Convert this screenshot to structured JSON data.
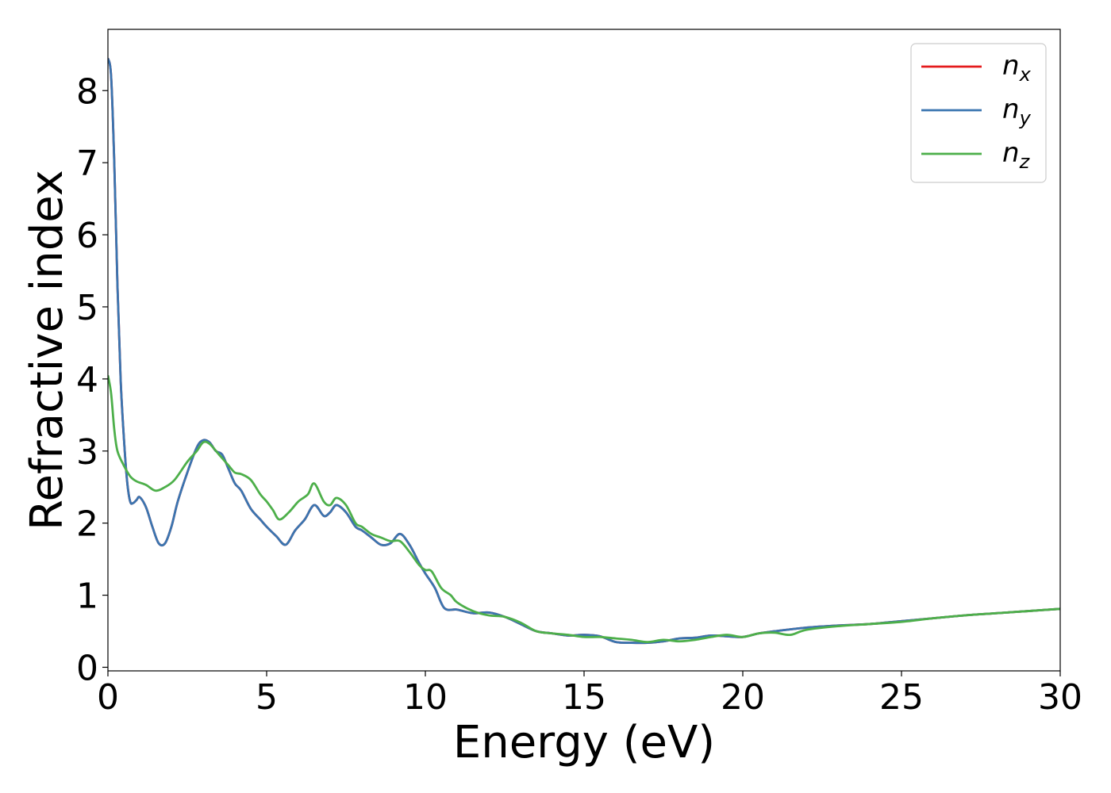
{
  "chart_data": {
    "type": "line",
    "xlabel": "Energy (eV)",
    "ylabel": "Refractive index",
    "xlim": [
      0,
      30
    ],
    "ylim": [
      -0.05,
      8.85
    ],
    "xticks": [
      0,
      5,
      10,
      15,
      20,
      25,
      30
    ],
    "yticks": [
      0,
      1,
      2,
      3,
      4,
      5,
      6,
      7,
      8
    ],
    "grid": false,
    "legend_position": "top-right",
    "series": [
      {
        "name": "n",
        "sub": "x",
        "color": "#e41a1c",
        "x": [
          0,
          0.1,
          0.2,
          0.3,
          0.4,
          0.5,
          0.6,
          0.7,
          0.8,
          0.9,
          1.0,
          1.2,
          1.4,
          1.6,
          1.8,
          2.0,
          2.2,
          2.5,
          2.8,
          3.0,
          3.2,
          3.4,
          3.6,
          3.8,
          4.0,
          4.2,
          4.5,
          4.8,
          5.0,
          5.3,
          5.6,
          5.9,
          6.2,
          6.5,
          6.8,
          7.0,
          7.2,
          7.5,
          7.8,
          8.0,
          8.3,
          8.6,
          8.9,
          9.2,
          9.5,
          9.8,
          10.0,
          10.3,
          10.6,
          11.0,
          11.5,
          12.0,
          12.5,
          13.0,
          13.5,
          14.0,
          14.5,
          15.0,
          15.5,
          16.0,
          16.5,
          17.0,
          17.5,
          18.0,
          18.5,
          19.0,
          19.5,
          20.0,
          20.5,
          21.0,
          22.0,
          23.0,
          24.0,
          25.0,
          26.0,
          27.0,
          28.0,
          29.0,
          30.0
        ],
        "y": [
          8.45,
          8.2,
          7.0,
          5.3,
          4.0,
          3.2,
          2.6,
          2.3,
          2.28,
          2.32,
          2.36,
          2.22,
          1.95,
          1.72,
          1.72,
          1.95,
          2.3,
          2.7,
          3.05,
          3.15,
          3.12,
          3.0,
          2.95,
          2.75,
          2.55,
          2.45,
          2.2,
          2.05,
          1.95,
          1.82,
          1.7,
          1.9,
          2.05,
          2.25,
          2.1,
          2.15,
          2.25,
          2.15,
          1.95,
          1.9,
          1.8,
          1.7,
          1.72,
          1.85,
          1.7,
          1.45,
          1.3,
          1.1,
          0.82,
          0.8,
          0.75,
          0.76,
          0.7,
          0.6,
          0.5,
          0.47,
          0.44,
          0.45,
          0.43,
          0.35,
          0.34,
          0.34,
          0.36,
          0.4,
          0.41,
          0.44,
          0.43,
          0.42,
          0.47,
          0.5,
          0.55,
          0.58,
          0.6,
          0.64,
          0.68,
          0.72,
          0.75,
          0.78,
          0.81
        ]
      },
      {
        "name": "n",
        "sub": "y",
        "color": "#3a75b0",
        "x": [
          0,
          0.1,
          0.2,
          0.3,
          0.4,
          0.5,
          0.6,
          0.7,
          0.8,
          0.9,
          1.0,
          1.2,
          1.4,
          1.6,
          1.8,
          2.0,
          2.2,
          2.5,
          2.8,
          3.0,
          3.2,
          3.4,
          3.6,
          3.8,
          4.0,
          4.2,
          4.5,
          4.8,
          5.0,
          5.3,
          5.6,
          5.9,
          6.2,
          6.5,
          6.8,
          7.0,
          7.2,
          7.5,
          7.8,
          8.0,
          8.3,
          8.6,
          8.9,
          9.2,
          9.5,
          9.8,
          10.0,
          10.3,
          10.6,
          11.0,
          11.5,
          12.0,
          12.5,
          13.0,
          13.5,
          14.0,
          14.5,
          15.0,
          15.5,
          16.0,
          16.5,
          17.0,
          17.5,
          18.0,
          18.5,
          19.0,
          19.5,
          20.0,
          20.5,
          21.0,
          22.0,
          23.0,
          24.0,
          25.0,
          26.0,
          27.0,
          28.0,
          29.0,
          30.0
        ],
        "y": [
          8.45,
          8.2,
          7.0,
          5.3,
          4.0,
          3.2,
          2.6,
          2.3,
          2.28,
          2.32,
          2.36,
          2.22,
          1.95,
          1.72,
          1.72,
          1.95,
          2.3,
          2.7,
          3.05,
          3.15,
          3.12,
          3.0,
          2.95,
          2.75,
          2.55,
          2.45,
          2.2,
          2.05,
          1.95,
          1.82,
          1.7,
          1.9,
          2.05,
          2.25,
          2.1,
          2.15,
          2.25,
          2.15,
          1.95,
          1.9,
          1.8,
          1.7,
          1.72,
          1.85,
          1.7,
          1.45,
          1.3,
          1.1,
          0.82,
          0.8,
          0.75,
          0.76,
          0.7,
          0.6,
          0.5,
          0.47,
          0.44,
          0.45,
          0.43,
          0.35,
          0.34,
          0.34,
          0.36,
          0.4,
          0.41,
          0.44,
          0.43,
          0.42,
          0.47,
          0.5,
          0.55,
          0.58,
          0.6,
          0.64,
          0.68,
          0.72,
          0.75,
          0.78,
          0.81
        ]
      },
      {
        "name": "n",
        "sub": "z",
        "color": "#4daf4a",
        "x": [
          0,
          0.1,
          0.2,
          0.3,
          0.5,
          0.7,
          0.9,
          1.2,
          1.5,
          1.8,
          2.1,
          2.5,
          2.8,
          3.0,
          3.2,
          3.5,
          3.8,
          4.0,
          4.2,
          4.5,
          4.8,
          5.0,
          5.2,
          5.4,
          5.7,
          6.0,
          6.3,
          6.5,
          6.8,
          7.0,
          7.2,
          7.5,
          7.8,
          8.0,
          8.3,
          8.6,
          8.9,
          9.2,
          9.5,
          9.8,
          10.0,
          10.2,
          10.5,
          10.8,
          11.0,
          11.5,
          12.0,
          12.5,
          13.0,
          13.5,
          14.0,
          14.5,
          15.0,
          15.5,
          16.0,
          16.5,
          17.0,
          17.5,
          18.0,
          18.5,
          19.0,
          19.5,
          20.0,
          20.5,
          21.0,
          21.5,
          22.0,
          23.0,
          24.0,
          25.0,
          26.0,
          27.0,
          28.0,
          29.0,
          30.0
        ],
        "y": [
          4.05,
          3.8,
          3.3,
          3.0,
          2.8,
          2.65,
          2.58,
          2.53,
          2.45,
          2.5,
          2.6,
          2.85,
          3.0,
          3.12,
          3.1,
          2.95,
          2.8,
          2.7,
          2.68,
          2.6,
          2.4,
          2.3,
          2.18,
          2.05,
          2.15,
          2.3,
          2.4,
          2.55,
          2.3,
          2.25,
          2.35,
          2.25,
          2.0,
          1.95,
          1.85,
          1.8,
          1.75,
          1.75,
          1.6,
          1.42,
          1.35,
          1.33,
          1.1,
          1.0,
          0.9,
          0.78,
          0.72,
          0.7,
          0.62,
          0.5,
          0.47,
          0.45,
          0.42,
          0.42,
          0.4,
          0.38,
          0.35,
          0.38,
          0.36,
          0.38,
          0.42,
          0.45,
          0.42,
          0.47,
          0.48,
          0.45,
          0.52,
          0.57,
          0.6,
          0.63,
          0.68,
          0.72,
          0.75,
          0.78,
          0.81
        ]
      }
    ]
  }
}
